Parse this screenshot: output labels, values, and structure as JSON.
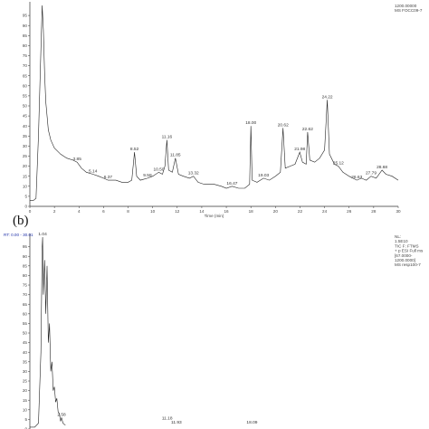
{
  "chart_data": [
    {
      "type": "line",
      "panel": "a",
      "xlabel": "Time (min)",
      "ylabel": "",
      "xlim": [
        0,
        30
      ],
      "ylim": [
        0,
        100
      ],
      "xticks": [
        0,
        2,
        4,
        6,
        8,
        10,
        12,
        14,
        16,
        18,
        20,
        22,
        24,
        26,
        28,
        30
      ],
      "yticks": [
        0,
        5,
        10,
        15,
        20,
        25,
        30,
        35,
        40,
        45,
        50,
        55,
        60,
        65,
        70,
        75,
        80,
        85,
        90,
        95
      ],
      "info": [
        "1200.00000",
        "MS FOCC09-7"
      ],
      "peak_labels": [
        {
          "x": 3.85,
          "y": 22,
          "label": "3.85"
        },
        {
          "x": 5.14,
          "y": 16,
          "label": "5.14"
        },
        {
          "x": 6.37,
          "y": 13,
          "label": "6.37"
        },
        {
          "x": 8.52,
          "y": 27,
          "label": "8.52"
        },
        {
          "x": 9.58,
          "y": 14,
          "label": "9.58"
        },
        {
          "x": 10.5,
          "y": 17,
          "label": "10.50"
        },
        {
          "x": 11.16,
          "y": 33,
          "label": "11.16"
        },
        {
          "x": 11.85,
          "y": 24,
          "label": "11.85"
        },
        {
          "x": 13.32,
          "y": 15,
          "label": "13.32"
        },
        {
          "x": 16.47,
          "y": 10,
          "label": "16.47"
        },
        {
          "x": 18.0,
          "y": 40,
          "label": "18.00"
        },
        {
          "x": 19.03,
          "y": 14,
          "label": "19.03"
        },
        {
          "x": 20.62,
          "y": 39,
          "label": "20.62"
        },
        {
          "x": 21.98,
          "y": 27,
          "label": "21.98"
        },
        {
          "x": 22.62,
          "y": 37,
          "label": "22.62"
        },
        {
          "x": 24.22,
          "y": 53,
          "label": "24.22"
        },
        {
          "x": 25.12,
          "y": 20,
          "label": "25.12"
        },
        {
          "x": 26.63,
          "y": 13,
          "label": "26.63"
        },
        {
          "x": 27.79,
          "y": 15,
          "label": "27.79"
        },
        {
          "x": 28.68,
          "y": 18,
          "label": "28.68"
        }
      ],
      "series": [
        {
          "x": [
            0,
            0.3,
            0.5,
            0.7,
            0.9,
            1.0,
            1.1,
            1.2,
            1.3,
            1.5,
            1.7,
            2.0,
            2.5,
            3.0,
            3.5,
            3.85,
            4.2,
            4.6,
            5.14,
            5.6,
            6.0,
            6.37,
            7.0,
            7.5,
            8.0,
            8.3,
            8.52,
            8.7,
            9.0,
            9.58,
            10.0,
            10.5,
            10.8,
            11.0,
            11.16,
            11.3,
            11.6,
            11.85,
            12.1,
            12.5,
            13.0,
            13.32,
            13.7,
            14.2,
            15.0,
            15.6,
            16.0,
            16.47,
            17.0,
            17.5,
            17.9,
            18.0,
            18.1,
            18.5,
            19.03,
            19.5,
            20.0,
            20.4,
            20.62,
            20.8,
            21.2,
            21.6,
            21.98,
            22.2,
            22.5,
            22.62,
            22.8,
            23.2,
            23.6,
            24.0,
            24.22,
            24.4,
            24.8,
            25.12,
            25.5,
            26.0,
            26.63,
            27.0,
            27.4,
            27.79,
            28.2,
            28.68,
            29.0,
            29.5,
            30.0
          ],
          "y": [
            3,
            3,
            4,
            35,
            78,
            100,
            88,
            66,
            52,
            38,
            33,
            29,
            26,
            24,
            23,
            22,
            19,
            17,
            16,
            15,
            14,
            13,
            13,
            12,
            12,
            13,
            27,
            15,
            13,
            14,
            15,
            17,
            16,
            20,
            33,
            18,
            17,
            24,
            16,
            15,
            14,
            15,
            12,
            11,
            11,
            10,
            9,
            10,
            9,
            9,
            11,
            40,
            13,
            12,
            14,
            13,
            15,
            17,
            39,
            19,
            20,
            21,
            27,
            22,
            21,
            37,
            23,
            22,
            24,
            28,
            53,
            26,
            21,
            20,
            17,
            15,
            13,
            14,
            13,
            15,
            14,
            18,
            16,
            15,
            13
          ]
        }
      ]
    },
    {
      "type": "line",
      "panel": "b",
      "xlim": [
        0,
        30
      ],
      "ylim": [
        0,
        100
      ],
      "yticks": [
        0,
        5,
        10,
        15,
        20,
        25,
        30,
        35,
        40,
        45,
        50,
        55,
        60,
        65,
        70,
        75,
        80,
        85,
        90,
        95
      ],
      "rt_range": "RT: 0.00 - 30.01",
      "info": [
        "NL:",
        "1.5E10",
        "TIC F: FTMS",
        "+ p ESI Full ms",
        "[67.0000-",
        "1200.0000]",
        "MS resp100-7"
      ],
      "peak_labels": [
        {
          "x": 1.04,
          "y": 100,
          "label": "1.04"
        },
        {
          "x": 2.58,
          "y": 6,
          "label": "2.58"
        },
        {
          "x": 11.18,
          "y": 4,
          "label": "11.18"
        },
        {
          "x": 11.93,
          "y": 2,
          "label": "11.93"
        },
        {
          "x": 18.09,
          "y": 2,
          "label": "18.09"
        }
      ],
      "series": [
        {
          "x": [
            0,
            0.4,
            0.7,
            0.9,
            1.0,
            1.04,
            1.1,
            1.2,
            1.3,
            1.4,
            1.5,
            1.6,
            1.7,
            1.8,
            1.9,
            2.0,
            2.1,
            2.2,
            2.3,
            2.4,
            2.5,
            2.58,
            2.7,
            2.9
          ],
          "y": [
            1,
            1,
            3,
            40,
            95,
            100,
            70,
            88,
            60,
            85,
            45,
            55,
            30,
            35,
            20,
            22,
            14,
            16,
            9,
            8,
            4,
            6,
            3,
            2
          ]
        }
      ]
    }
  ],
  "panel_b_label": "(b)"
}
